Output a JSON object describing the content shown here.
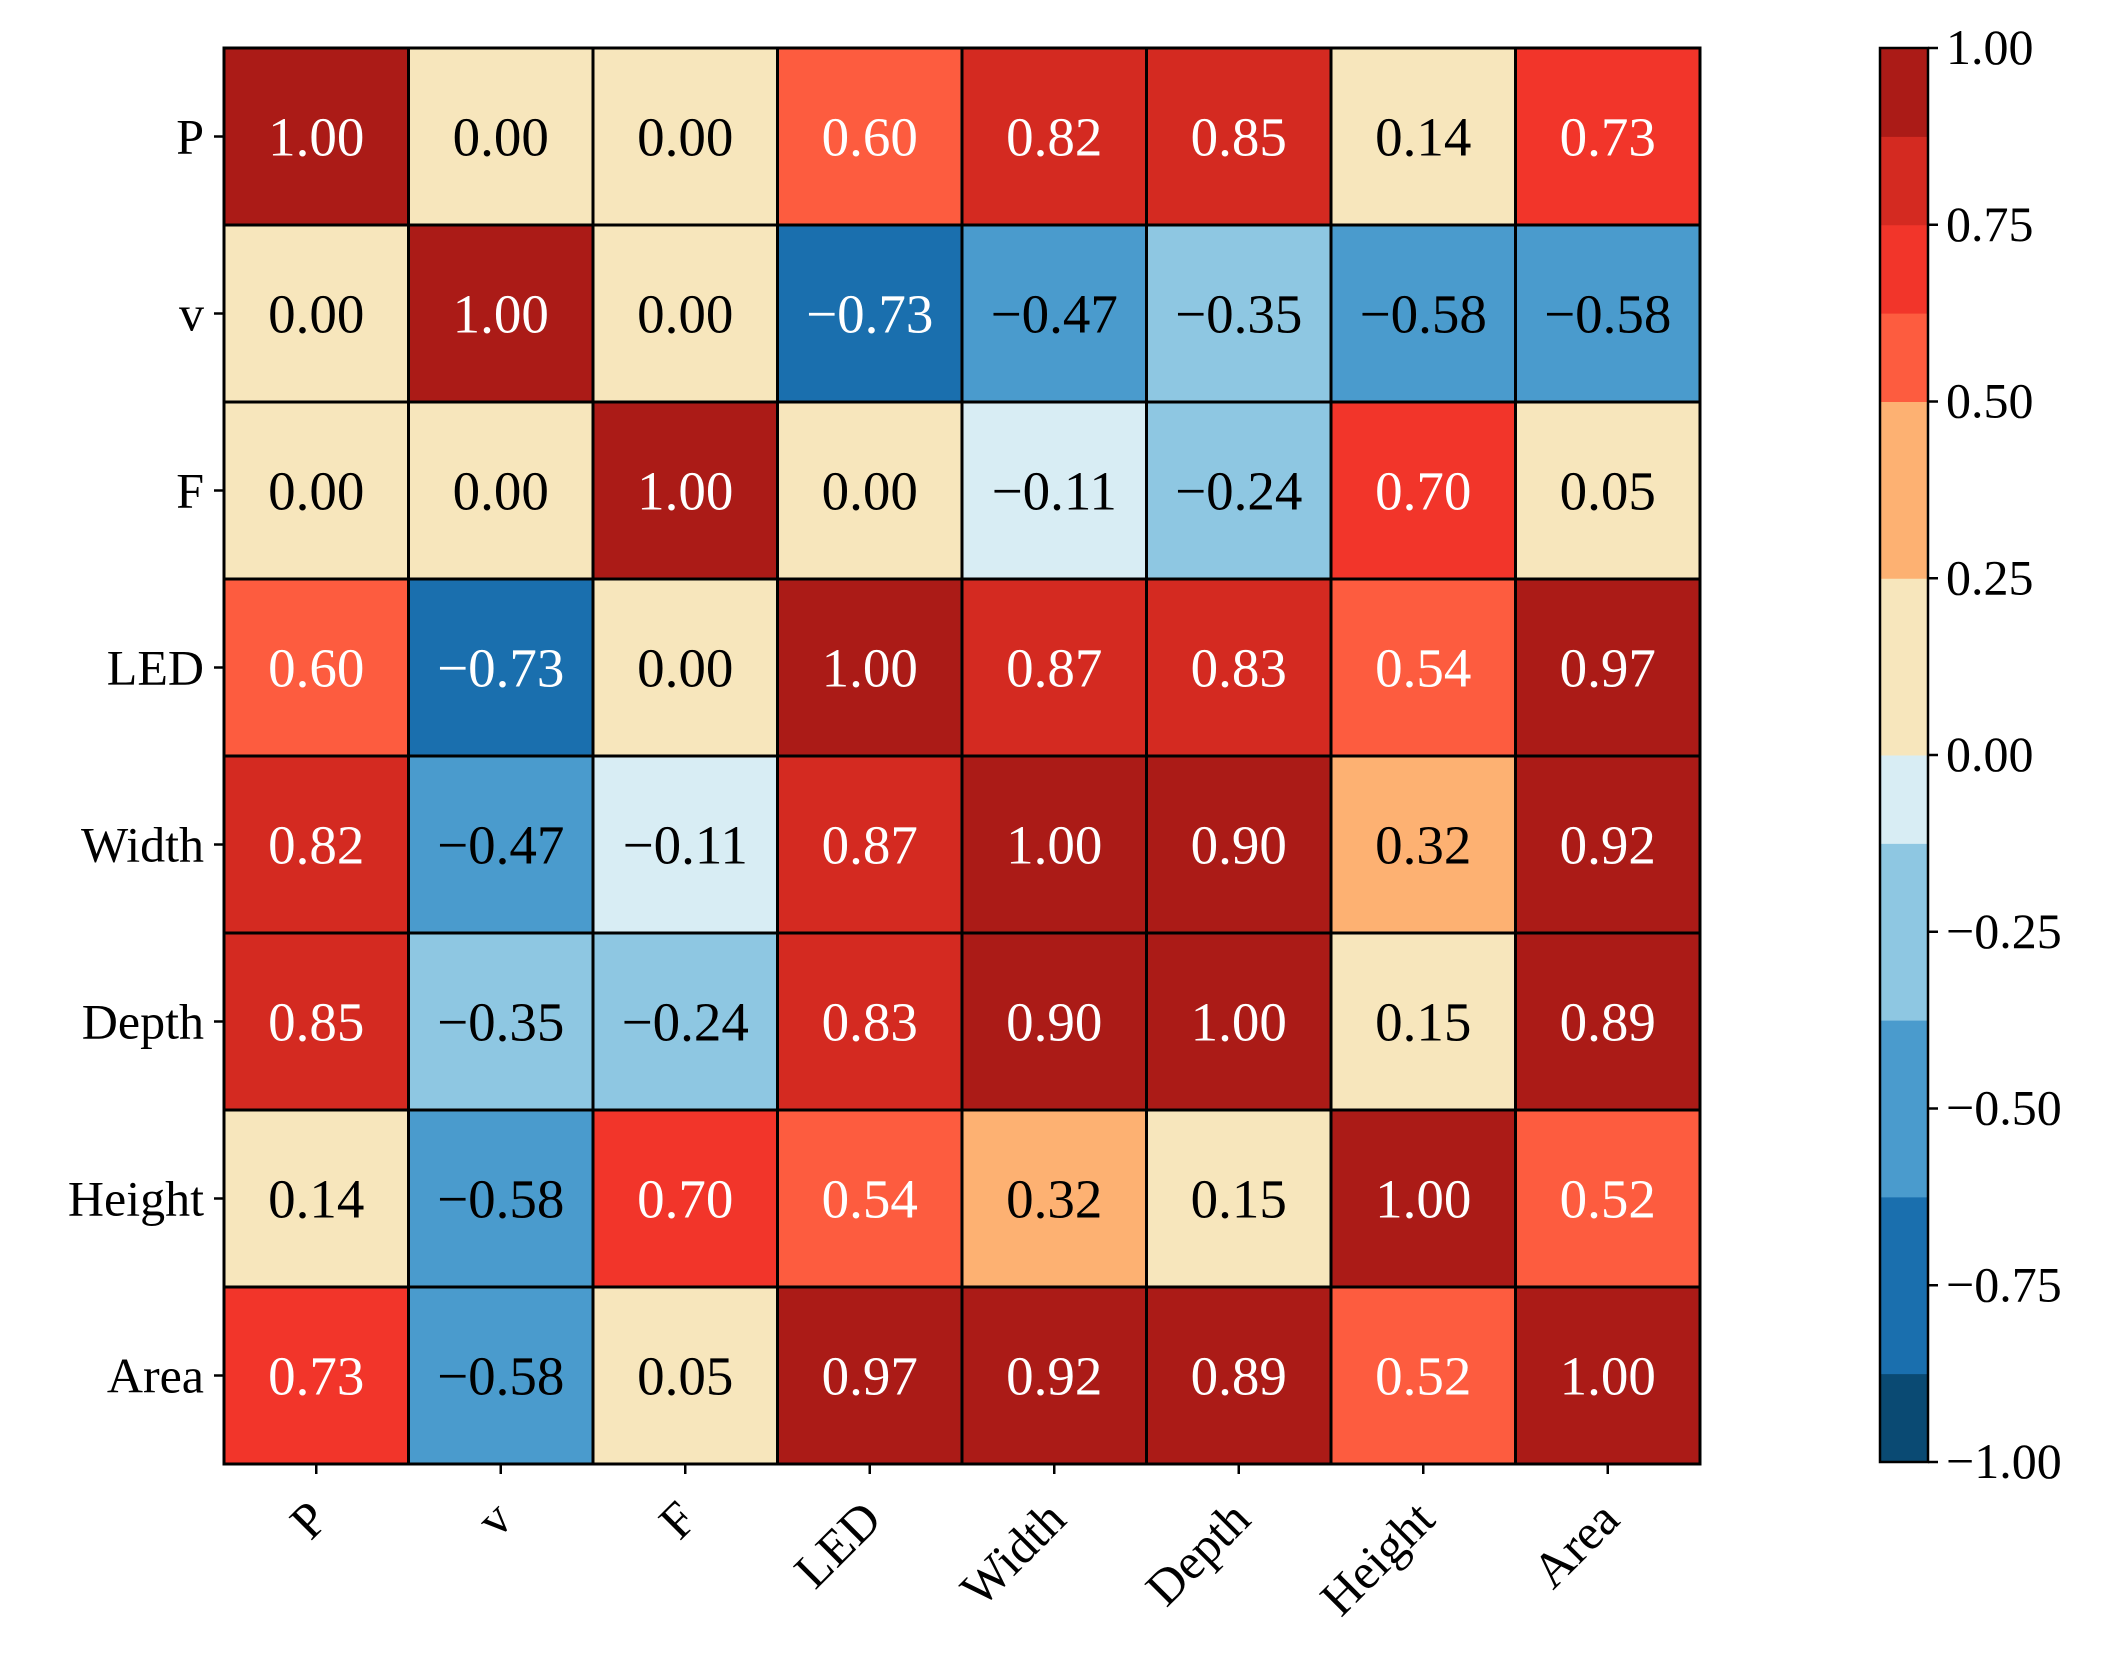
{
  "chart_data": {
    "type": "heatmap",
    "title": "",
    "xlabel": "",
    "ylabel": "",
    "row_labels": [
      "P",
      "v",
      "F",
      "LED",
      "Width",
      "Depth",
      "Height",
      "Area"
    ],
    "col_labels": [
      "P",
      "v",
      "F",
      "LED",
      "Width",
      "Depth",
      "Height",
      "Area"
    ],
    "values": [
      [
        1.0,
        0.0,
        0.0,
        0.6,
        0.82,
        0.85,
        0.14,
        0.73
      ],
      [
        0.0,
        1.0,
        0.0,
        -0.73,
        -0.47,
        -0.35,
        -0.58,
        -0.58
      ],
      [
        0.0,
        0.0,
        1.0,
        0.0,
        -0.11,
        -0.24,
        0.7,
        0.05
      ],
      [
        0.6,
        -0.73,
        0.0,
        1.0,
        0.87,
        0.83,
        0.54,
        0.97
      ],
      [
        0.82,
        -0.47,
        -0.11,
        0.87,
        1.0,
        0.9,
        0.32,
        0.92
      ],
      [
        0.85,
        -0.35,
        -0.24,
        0.83,
        0.9,
        1.0,
        0.15,
        0.89
      ],
      [
        0.14,
        -0.58,
        0.7,
        0.54,
        0.32,
        0.15,
        1.0,
        0.52
      ],
      [
        0.73,
        -0.58,
        0.05,
        0.97,
        0.92,
        0.89,
        0.52,
        1.0
      ]
    ],
    "cell_labels": [
      [
        "1.00",
        "0.00",
        "0.00",
        "0.60",
        "0.82",
        "0.85",
        "0.14",
        "0.73"
      ],
      [
        "0.00",
        "1.00",
        "0.00",
        "−0.73",
        "−0.47",
        "−0.35",
        "−0.58",
        "−0.58"
      ],
      [
        "0.00",
        "0.00",
        "1.00",
        "0.00",
        "−0.11",
        "−0.24",
        "0.70",
        "0.05"
      ],
      [
        "0.60",
        "−0.73",
        "0.00",
        "1.00",
        "0.87",
        "0.83",
        "0.54",
        "0.97"
      ],
      [
        "0.82",
        "−0.47",
        "−0.11",
        "0.87",
        "1.00",
        "0.90",
        "0.32",
        "0.92"
      ],
      [
        "0.85",
        "−0.35",
        "−0.24",
        "0.83",
        "0.90",
        "1.00",
        "0.15",
        "0.89"
      ],
      [
        "0.14",
        "−0.58",
        "0.70",
        "0.54",
        "0.32",
        "0.15",
        "1.00",
        "0.52"
      ],
      [
        "0.73",
        "−0.58",
        "0.05",
        "0.97",
        "0.92",
        "0.89",
        "0.52",
        "1.00"
      ]
    ],
    "colorbar": {
      "range": [
        -1.0,
        1.0
      ],
      "ticks": [
        1.0,
        0.75,
        0.5,
        0.25,
        0.0,
        -0.25,
        -0.5,
        -0.75,
        -1.0
      ],
      "tick_labels": [
        "1.00",
        "0.75",
        "0.50",
        "0.25",
        "0.00",
        "−0.25",
        "−0.50",
        "−0.75",
        "−1.00"
      ],
      "location": "right",
      "bins": [
        {
          "from": -1.0,
          "to": -0.875,
          "color": "#0a4a73"
        },
        {
          "from": -0.875,
          "to": -0.625,
          "color": "#1a6fae"
        },
        {
          "from": -0.625,
          "to": -0.375,
          "color": "#4a9bcd"
        },
        {
          "from": -0.375,
          "to": -0.125,
          "color": "#8ec7e2"
        },
        {
          "from": -0.125,
          "to": 0.0,
          "color": "#d8edf4"
        },
        {
          "from": 0.0,
          "to": 0.25,
          "color": "#f7e6bc"
        },
        {
          "from": 0.25,
          "to": 0.5,
          "color": "#fdb172"
        },
        {
          "from": 0.5,
          "to": 0.625,
          "color": "#fd5c3f"
        },
        {
          "from": 0.625,
          "to": 0.75,
          "color": "#f2352a"
        },
        {
          "from": 0.75,
          "to": 0.875,
          "color": "#d42a21"
        },
        {
          "from": 0.875,
          "to": 1.01,
          "color": "#ab1b17"
        }
      ]
    },
    "text_color_light": "#ffffff",
    "text_color_dark": "#000000",
    "grid": false
  }
}
